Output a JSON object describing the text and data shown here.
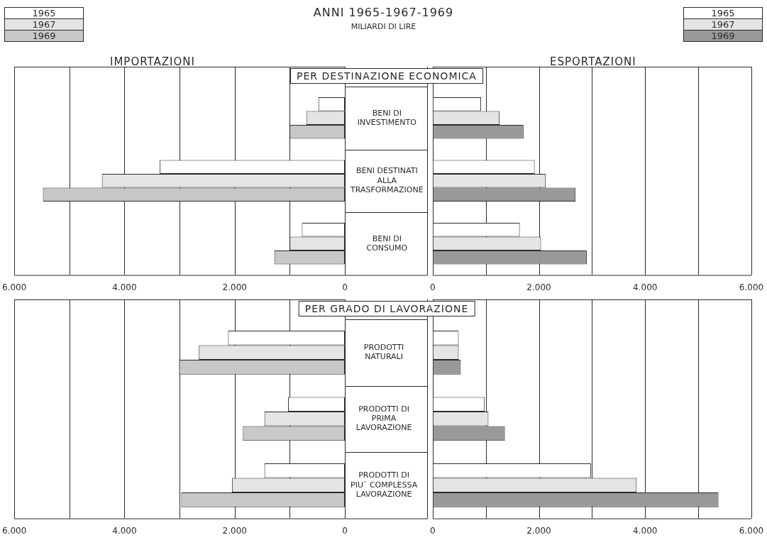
{
  "chart_data": [
    {
      "type": "bar",
      "orientation": "horizontal",
      "title": "ANNI 1965-1967-1969",
      "subtitle": "MILIARDI DI LIRE",
      "annotations": [
        "IMPORTAZIONI",
        "PER DESTINAZIONE ECONOMICA"
      ],
      "categories": [
        "BENI DI INVESTIMENTO",
        "BENI DESTINATI ALLA TRASFORMAZIONE",
        "BENI DI CONSUMO"
      ],
      "series": [
        {
          "name": "1965",
          "color": "#ffffff",
          "values": [
            480,
            3360,
            780
          ]
        },
        {
          "name": "1967",
          "color": "#e4e4e4",
          "values": [
            700,
            4410,
            1000
          ]
        },
        {
          "name": "1969",
          "color": "#c8c8c8",
          "values": [
            1000,
            5480,
            1280
          ]
        }
      ],
      "xlim": [
        6000,
        0
      ],
      "xticks": [
        {
          "value": 6000,
          "label": "6.000"
        },
        {
          "value": 5000,
          "label": null
        },
        {
          "value": 4000,
          "label": "4.000"
        },
        {
          "value": 3000,
          "label": null
        },
        {
          "value": 2000,
          "label": "2.000"
        },
        {
          "value": 1000,
          "label": null
        },
        {
          "value": 0,
          "label": "0"
        }
      ],
      "grid": "x",
      "legend": "top left"
    },
    {
      "type": "bar",
      "orientation": "horizontal",
      "annotations": [
        "ESPORTAZIONI"
      ],
      "categories": [
        null,
        null,
        null
      ],
      "series": [
        {
          "name": "1965",
          "color": "#ffffff",
          "values": [
            910,
            1920,
            1640
          ]
        },
        {
          "name": "1967",
          "color": "#e4e4e4",
          "values": [
            1260,
            2130,
            2040
          ]
        },
        {
          "name": "1969",
          "color": "#999999",
          "values": [
            1710,
            2690,
            2900
          ]
        }
      ],
      "xlim": [
        0,
        6000
      ],
      "xticks": [
        {
          "value": 0,
          "label": "0"
        },
        {
          "value": 1000,
          "label": null
        },
        {
          "value": 2000,
          "label": "2.000"
        },
        {
          "value": 3000,
          "label": null
        },
        {
          "value": 4000,
          "label": "4.000"
        },
        {
          "value": 5000,
          "label": null
        },
        {
          "value": 6000,
          "label": "6.000"
        }
      ],
      "grid": "x",
      "legend": "top right"
    },
    {
      "type": "bar",
      "orientation": "horizontal",
      "annotations": [
        "PER GRADO DI LAVORAZIONE"
      ],
      "categories": [
        "PRODOTTI NATURALI",
        "PRODOTTI DI PRIMA LAVORAZIONE",
        "PRODOTTI DI PIU` COMPLESSA LAVORAZIONE"
      ],
      "series": [
        {
          "color": "#ffffff",
          "values": [
            2120,
            1030,
            1460
          ]
        },
        {
          "color": "#e4e4e4",
          "values": [
            2650,
            1460,
            2050
          ]
        },
        {
          "color": "#c8c8c8",
          "values": [
            3010,
            1850,
            2970
          ]
        }
      ],
      "xlim": [
        6000,
        0
      ],
      "xticks": [
        {
          "value": 6000,
          "label": "6.000"
        },
        {
          "value": 5000,
          "label": null
        },
        {
          "value": 4000,
          "label": "4.000"
        },
        {
          "value": 3000,
          "label": null
        },
        {
          "value": 2000,
          "label": "2.000"
        },
        {
          "value": 1000,
          "label": null
        },
        {
          "value": 0,
          "label": "0"
        }
      ],
      "grid": "x"
    },
    {
      "type": "bar",
      "orientation": "horizontal",
      "categories": [
        null,
        null,
        null
      ],
      "series": [
        {
          "color": "#ffffff",
          "values": [
            490,
            980,
            2980
          ]
        },
        {
          "color": "#e4e4e4",
          "values": [
            490,
            1050,
            3840
          ]
        },
        {
          "color": "#999999",
          "values": [
            530,
            1360,
            5380
          ]
        }
      ],
      "xlim": [
        0,
        6000
      ],
      "xticks": [
        {
          "value": 0,
          "label": "0"
        },
        {
          "value": 1000,
          "label": null
        },
        {
          "value": 2000,
          "label": "2.000"
        },
        {
          "value": 3000,
          "label": null
        },
        {
          "value": 4000,
          "label": "4.000"
        },
        {
          "value": 5000,
          "label": null
        },
        {
          "value": 6000,
          "label": "6.000"
        }
      ],
      "grid": "x"
    }
  ]
}
